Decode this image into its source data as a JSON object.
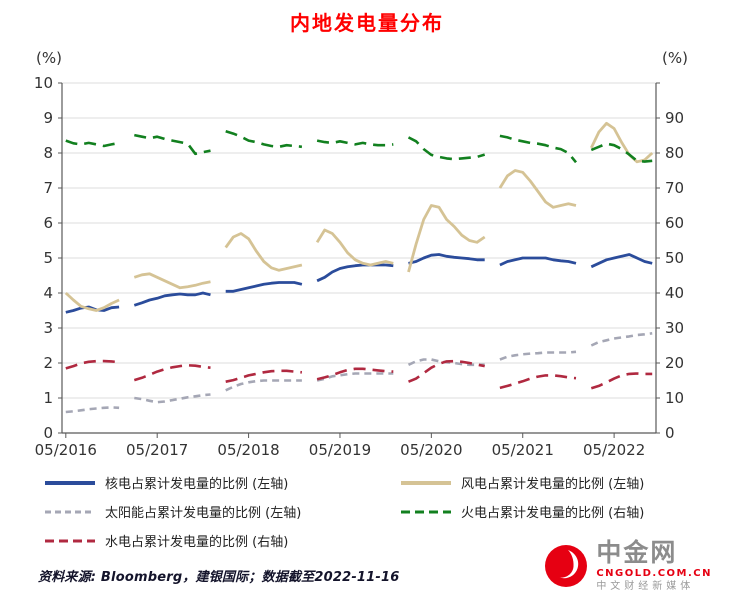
{
  "footer": {
    "source": "资料来源: Bloomberg，建银国际；数据截至2022-11-16"
  },
  "watermark": {
    "brand": "中金网",
    "domain": "CNGOLD.COM.CN",
    "tagline": "中文财经新媒体"
  },
  "chart_data": {
    "type": "line",
    "title": "内地发电量分布",
    "x_unit": "month",
    "x_tick_labels": [
      "05/2016",
      "05/2017",
      "05/2018",
      "05/2019",
      "05/2020",
      "05/2021",
      "05/2022"
    ],
    "x_tick_indices": [
      0,
      12,
      24,
      36,
      48,
      60,
      72
    ],
    "left_axis": {
      "label": "(%)",
      "min": 0,
      "max": 10,
      "ticks": [
        0,
        1,
        2,
        3,
        4,
        5,
        6,
        7,
        8,
        9,
        10
      ]
    },
    "right_axis": {
      "label": "(%)",
      "min": 0,
      "max": 90,
      "ticks": [
        0,
        10,
        20,
        30,
        40,
        50,
        60,
        70,
        80,
        90
      ]
    },
    "grid": true,
    "legend_position": "bottom",
    "series": [
      {
        "key": "nuclear",
        "name": "核电占累计发电量的比例 (左轴)",
        "axis": "left",
        "color": "#2B4C9B",
        "style": "solid",
        "values": [
          3.45,
          3.5,
          3.57,
          3.6,
          3.52,
          3.5,
          3.58,
          3.6,
          null,
          3.65,
          3.72,
          3.8,
          3.85,
          3.92,
          3.95,
          3.97,
          3.95,
          3.95,
          4.0,
          3.95,
          null,
          4.05,
          4.05,
          4.1,
          4.15,
          4.2,
          4.25,
          4.28,
          4.3,
          4.3,
          4.3,
          4.25,
          null,
          4.35,
          4.45,
          4.6,
          4.7,
          4.75,
          4.78,
          4.8,
          4.8,
          4.8,
          4.8,
          4.78,
          null,
          4.85,
          4.9,
          5.0,
          5.08,
          5.1,
          5.05,
          5.02,
          5.0,
          4.98,
          4.95,
          4.95,
          null,
          4.8,
          4.9,
          4.95,
          5.0,
          5.0,
          5.0,
          5.0,
          4.95,
          4.92,
          4.9,
          4.85,
          null,
          4.75,
          4.85,
          4.95,
          5.0,
          5.05,
          5.1,
          5.0,
          4.9,
          4.85
        ]
      },
      {
        "key": "wind",
        "name": "风电占累计发电量的比例 (左轴)",
        "axis": "left",
        "color": "#D5C395",
        "style": "solid",
        "values": [
          4.0,
          3.8,
          3.62,
          3.55,
          3.5,
          3.58,
          3.7,
          3.8,
          null,
          4.45,
          4.52,
          4.55,
          4.45,
          4.35,
          4.25,
          4.15,
          4.18,
          4.22,
          4.28,
          4.32,
          null,
          5.3,
          5.6,
          5.7,
          5.55,
          5.2,
          4.9,
          4.72,
          4.65,
          4.7,
          4.75,
          4.8,
          null,
          5.45,
          5.8,
          5.7,
          5.45,
          5.15,
          4.95,
          4.85,
          4.8,
          4.85,
          4.9,
          4.85,
          null,
          4.6,
          5.4,
          6.1,
          6.5,
          6.45,
          6.1,
          5.9,
          5.65,
          5.5,
          5.45,
          5.6,
          null,
          7.0,
          7.35,
          7.5,
          7.45,
          7.2,
          6.9,
          6.6,
          6.45,
          6.5,
          6.55,
          6.5,
          null,
          8.15,
          8.6,
          8.85,
          8.7,
          8.3,
          7.95,
          7.75,
          7.8,
          8.0
        ]
      },
      {
        "key": "solar",
        "name": "太阳能占累计发电量的比例 (左轴)",
        "axis": "left",
        "color": "#A5A7B5",
        "style": "dash",
        "values": [
          0.6,
          0.62,
          0.65,
          0.68,
          0.7,
          0.72,
          0.73,
          0.72,
          null,
          1.0,
          0.97,
          0.92,
          0.88,
          0.9,
          0.94,
          0.98,
          1.02,
          1.05,
          1.08,
          1.1,
          null,
          1.22,
          1.32,
          1.4,
          1.45,
          1.48,
          1.5,
          1.5,
          1.5,
          1.5,
          1.5,
          1.5,
          null,
          1.5,
          1.55,
          1.62,
          1.65,
          1.68,
          1.7,
          1.7,
          1.7,
          1.7,
          1.7,
          1.7,
          null,
          1.95,
          2.05,
          2.1,
          2.1,
          2.05,
          2.02,
          2.0,
          1.97,
          1.95,
          1.95,
          1.95,
          null,
          2.1,
          2.18,
          2.22,
          2.25,
          2.27,
          2.28,
          2.3,
          2.3,
          2.3,
          2.3,
          2.32,
          null,
          2.5,
          2.6,
          2.65,
          2.7,
          2.73,
          2.76,
          2.8,
          2.82,
          2.85
        ]
      },
      {
        "key": "thermal",
        "name": "火电占累计发电量的比例 (右轴)",
        "axis": "right",
        "color": "#12801F",
        "style": "longdash",
        "values": [
          75.2,
          74.5,
          74.2,
          74.6,
          74.2,
          73.8,
          74.2,
          74.6,
          null,
          76.6,
          76.2,
          75.8,
          76.2,
          75.6,
          75.2,
          74.8,
          74.4,
          71.8,
          72.2,
          72.6,
          null,
          77.6,
          77.0,
          76.2,
          75.2,
          74.8,
          74.2,
          73.8,
          73.6,
          74.0,
          73.8,
          73.6,
          null,
          75.2,
          74.8,
          74.6,
          75.0,
          74.6,
          74.2,
          74.6,
          74.2,
          74.0,
          74.0,
          74.2,
          null,
          76.0,
          75.0,
          73.0,
          71.5,
          71.0,
          70.6,
          70.4,
          70.6,
          70.8,
          71.0,
          71.6,
          null,
          76.4,
          76.0,
          75.4,
          75.0,
          74.6,
          74.4,
          74.0,
          73.4,
          73.0,
          72.0,
          69.6,
          null,
          72.8,
          73.6,
          74.4,
          74.0,
          73.0,
          71.6,
          70.0,
          69.8,
          70.0
        ]
      },
      {
        "key": "hydro",
        "name": "水电占累计发电量的比例 (右轴)",
        "axis": "right",
        "color": "#B02940",
        "style": "longdash",
        "values": [
          16.6,
          17.2,
          17.9,
          18.3,
          18.5,
          18.5,
          18.4,
          18.2,
          null,
          13.6,
          14.2,
          15.0,
          15.8,
          16.4,
          16.9,
          17.2,
          17.4,
          17.3,
          17.0,
          16.8,
          null,
          13.2,
          13.6,
          14.2,
          14.8,
          15.2,
          15.6,
          15.9,
          16.0,
          16.0,
          15.8,
          15.6,
          null,
          13.8,
          14.3,
          14.9,
          15.6,
          16.2,
          16.5,
          16.5,
          16.3,
          16.1,
          15.9,
          15.8,
          null,
          13.2,
          14.0,
          15.4,
          16.8,
          17.8,
          18.4,
          18.5,
          18.3,
          18.0,
          17.6,
          17.2,
          null,
          11.6,
          12.1,
          12.7,
          13.3,
          14.0,
          14.5,
          14.8,
          14.8,
          14.6,
          14.3,
          14.1,
          null,
          11.5,
          12.1,
          13.0,
          14.0,
          14.8,
          15.2,
          15.3,
          15.2,
          15.2
        ]
      }
    ]
  }
}
